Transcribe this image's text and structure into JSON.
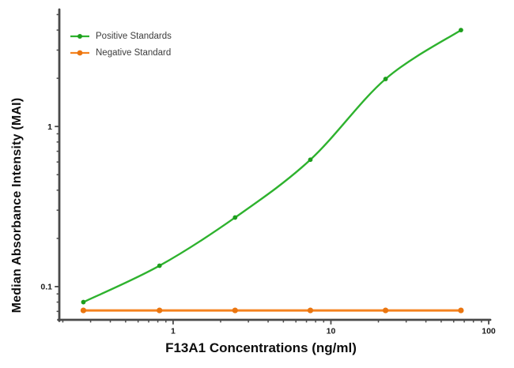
{
  "chart_data": {
    "type": "line",
    "title": "",
    "xlabel": "F13A1 Concentrations (ng/ml)",
    "ylabel": "Median Absorbance Intensity (MAI)",
    "x_scale": "log",
    "y_scale": "log",
    "xlim": [
      0.19,
      100
    ],
    "ylim": [
      0.062,
      5.2
    ],
    "x_ticks": [
      1,
      10,
      100
    ],
    "x_tick_labels": [
      "1",
      "10",
      "100"
    ],
    "y_ticks": [
      0.1,
      1
    ],
    "y_tick_labels": [
      "0.1",
      "1"
    ],
    "grid": false,
    "legend_position": "top-left",
    "axis_color": "#4a4a4a",
    "series": [
      {
        "name": "Positive Standards",
        "color": "#2eb22e",
        "marker_color": "#1d9e1d",
        "marker": "circle",
        "smooth": true,
        "x": [
          0.27,
          0.82,
          2.47,
          7.41,
          22.2,
          66.7
        ],
        "y": [
          0.08,
          0.135,
          0.27,
          0.62,
          1.98,
          4.0
        ]
      },
      {
        "name": "Negative Standard",
        "color": "#f5821f",
        "marker_color": "#ea750f",
        "marker": "circle",
        "smooth": false,
        "x": [
          0.27,
          0.82,
          2.47,
          7.41,
          22.2,
          66.7
        ],
        "y": [
          0.071,
          0.071,
          0.071,
          0.071,
          0.071,
          0.071
        ]
      }
    ]
  }
}
